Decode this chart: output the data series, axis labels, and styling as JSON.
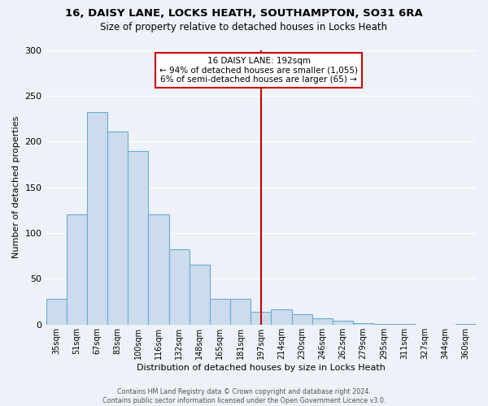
{
  "title": "16, DAISY LANE, LOCKS HEATH, SOUTHAMPTON, SO31 6RA",
  "subtitle": "Size of property relative to detached houses in Locks Heath",
  "xlabel": "Distribution of detached houses by size in Locks Heath",
  "ylabel": "Number of detached properties",
  "bar_labels": [
    "35sqm",
    "51sqm",
    "67sqm",
    "83sqm",
    "100sqm",
    "116sqm",
    "132sqm",
    "148sqm",
    "165sqm",
    "181sqm",
    "197sqm",
    "214sqm",
    "230sqm",
    "246sqm",
    "262sqm",
    "279sqm",
    "295sqm",
    "311sqm",
    "327sqm",
    "344sqm",
    "360sqm"
  ],
  "bar_heights": [
    28,
    120,
    232,
    211,
    190,
    120,
    82,
    65,
    28,
    28,
    14,
    17,
    11,
    7,
    4,
    2,
    1,
    1,
    0,
    0,
    1
  ],
  "bar_color": "#ccdcec",
  "bar_edge_color": "#6aaad4",
  "vline_x": 10,
  "vline_color": "#cc0000",
  "annotation_title": "16 DAISY LANE: 192sqm",
  "annotation_line1": "← 94% of detached houses are smaller (1,055)",
  "annotation_line2": "6% of semi-detached houses are larger (65) →",
  "annotation_box_color": "#cc0000",
  "ylim": [
    0,
    300
  ],
  "yticks": [
    0,
    50,
    100,
    150,
    200,
    250,
    300
  ],
  "footer1": "Contains HM Land Registry data © Crown copyright and database right 2024.",
  "footer2": "Contains public sector information licensed under the Open Government Licence v3.0.",
  "background_color": "#eef2f8"
}
